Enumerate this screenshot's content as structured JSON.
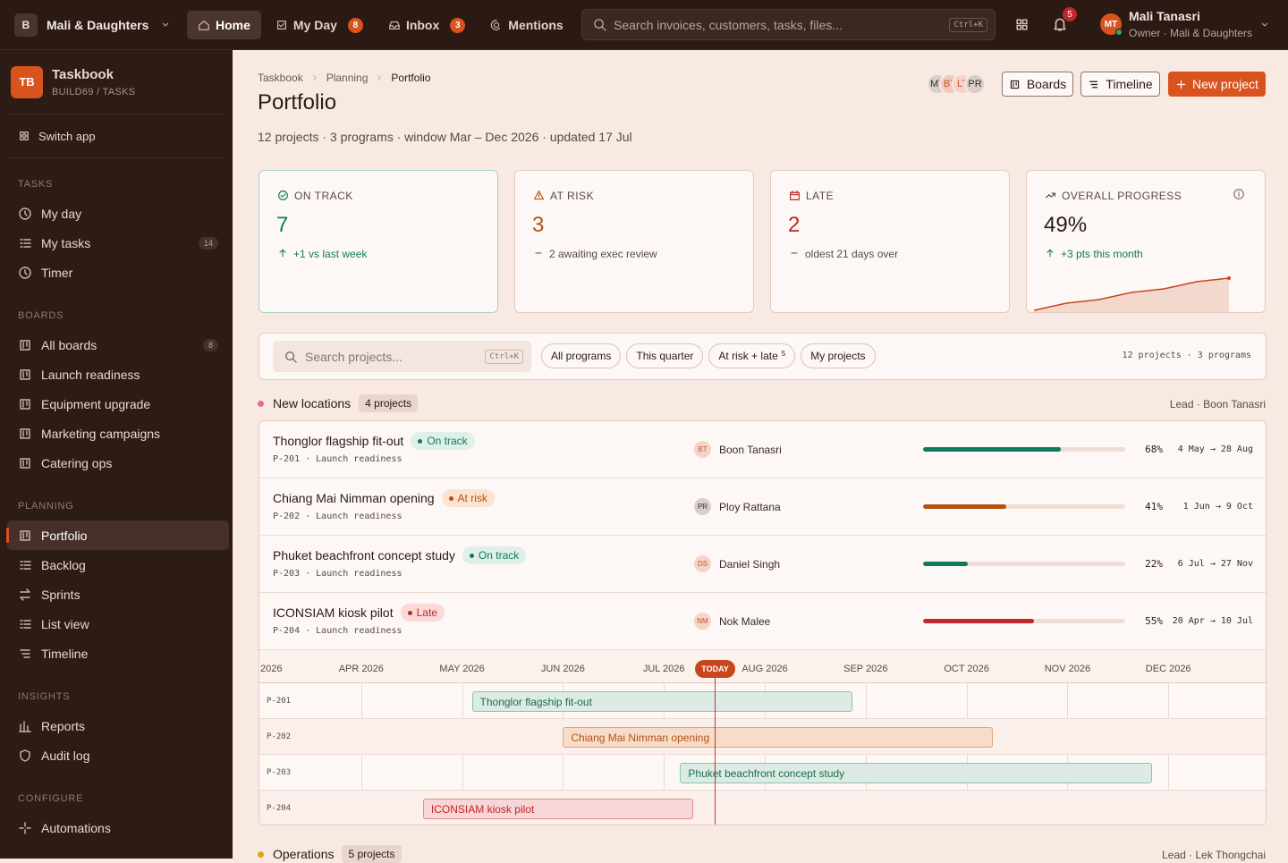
{
  "topbar": {
    "workspace_initial": "B",
    "workspace": "Mali & Daughters",
    "nav": [
      {
        "label": "Home",
        "active": true
      },
      {
        "label": "My Day",
        "badge": 8
      },
      {
        "label": "Inbox",
        "badge": 3
      },
      {
        "label": "Mentions"
      }
    ],
    "search_placeholder": "Search invoices, customers, tasks, files...",
    "search_shortcut": "Ctrl+K",
    "notifications": 5,
    "user_initials": "MT",
    "user_name": "Mali Tanasri",
    "user_role": "Owner · Mali & Daughters"
  },
  "sidebar": {
    "app_initials": "TB",
    "app_name": "Taskbook",
    "app_path": "BUILD69 / TASKS",
    "switch_app": "Switch app",
    "sections": [
      {
        "title": "TASKS",
        "items": [
          {
            "label": "My day"
          },
          {
            "label": "My tasks",
            "count": 14
          },
          {
            "label": "Timer"
          }
        ]
      },
      {
        "title": "BOARDS",
        "items": [
          {
            "label": "All boards",
            "count": 8
          },
          {
            "label": "Launch readiness"
          },
          {
            "label": "Equipment upgrade"
          },
          {
            "label": "Marketing campaigns"
          },
          {
            "label": "Catering ops"
          }
        ]
      },
      {
        "title": "PLANNING",
        "items": [
          {
            "label": "Portfolio",
            "active": true
          },
          {
            "label": "Backlog"
          },
          {
            "label": "Sprints"
          },
          {
            "label": "List view"
          },
          {
            "label": "Timeline"
          }
        ]
      },
      {
        "title": "INSIGHTS",
        "items": [
          {
            "label": "Reports"
          },
          {
            "label": "Audit log"
          }
        ]
      },
      {
        "title": "CONFIGURE",
        "items": [
          {
            "label": "Automations"
          }
        ]
      }
    ]
  },
  "header": {
    "breadcrumbs": [
      "Taskbook",
      "Planning",
      "Portfolio"
    ],
    "title": "Portfolio",
    "subtitle": "12 projects · 3 programs · window Mar – Dec 2026 · updated 17 Jul",
    "members": [
      "MT",
      "BT",
      "LT",
      "PR"
    ],
    "buttons": [
      "Boards",
      "Timeline"
    ],
    "primary_button": "New project"
  },
  "kpis": [
    {
      "label": "ON TRACK",
      "value": 7,
      "note": "+1 vs last week",
      "value_color": "#0f7a5a",
      "note_color": "#0f7a5a"
    },
    {
      "label": "AT RISK",
      "value": 3,
      "note": "2 awaiting exec review",
      "value_color": "#b5520f",
      "note_color": "#5a4a42"
    },
    {
      "label": "LATE",
      "value": 2,
      "note": "oldest 21 days over",
      "value_color": "#c0262a",
      "note_color": "#5a4a42"
    },
    {
      "label": "OVERALL PROGRESS",
      "value": "49%",
      "note": "+3 pts this month",
      "value_color": "#2a1a14",
      "note_color": "#0f7a5a",
      "trend": [
        40,
        42,
        43,
        45,
        46,
        48,
        49
      ],
      "trend_color": "#c8461b"
    }
  ],
  "filters": {
    "search_placeholder": "Search projects...",
    "shortcut": "Ctrl+K",
    "chips": [
      {
        "label": "All programs"
      },
      {
        "label": "This quarter"
      },
      {
        "label": "At risk + late",
        "count": 5
      },
      {
        "label": "My projects"
      }
    ],
    "summary": "12 projects · 3 programs"
  },
  "groups": [
    {
      "name": "New locations",
      "count_label": "4 projects",
      "lead": "Lead · Boon Tanasri",
      "color": "#e46c8a",
      "projects": [
        {
          "name": "Thonglor flagship fit-out",
          "status": "On track",
          "tone": "green",
          "code": "P-201",
          "meta": "P-201 · Launch readiness",
          "owner_initials": "BT",
          "owner": "Boon Tanasri",
          "progress": {
            "value": 68,
            "label": "68%"
          },
          "dates": "4 May → 28 Aug"
        },
        {
          "name": "Chiang Mai Nimman opening",
          "status": "At risk",
          "tone": "orange",
          "code": "P-202",
          "meta": "P-202 · Launch readiness",
          "owner_initials": "PR",
          "owner": "Ploy Rattana",
          "progress": {
            "value": 41,
            "label": "41%"
          },
          "dates": "1 Jun → 9 Oct"
        },
        {
          "name": "Phuket beachfront concept study",
          "status": "On track",
          "tone": "green",
          "code": "P-203",
          "meta": "P-203 · Launch readiness",
          "owner_initials": "DS",
          "owner": "Daniel Singh",
          "progress": {
            "value": 22,
            "label": "22%"
          },
          "dates": "6 Jul → 27 Nov"
        },
        {
          "name": "ICONSIAM kiosk pilot",
          "status": "Late",
          "tone": "red",
          "code": "P-204",
          "meta": "P-204 · Launch readiness",
          "owner_initials": "NM",
          "owner": "Nok Malee",
          "progress": {
            "value": 55,
            "label": "55%"
          },
          "dates": "20 Apr → 10 Jul"
        }
      ]
    },
    {
      "name": "Operations",
      "count_label": "5 projects",
      "lead": "Lead · Lek Thongchai",
      "color": "#e3a21a"
    }
  ],
  "timeline": {
    "months": [
      "2026",
      "APR 2026",
      "MAY 2026",
      "JUN 2026",
      "JUL 2026",
      "AUG 2026",
      "SEP 2026",
      "OCT 2026",
      "NOV 2026",
      "DEC 2026"
    ],
    "today": "TODAY"
  }
}
